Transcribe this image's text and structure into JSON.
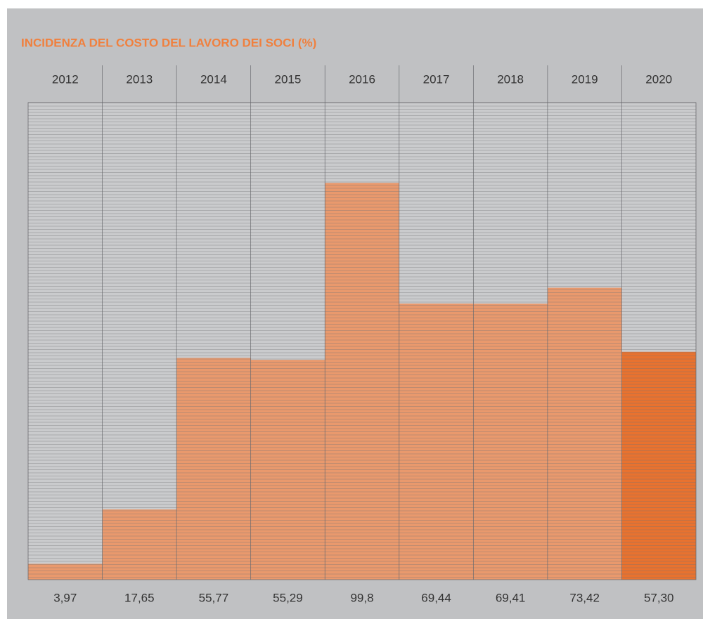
{
  "chart_data": {
    "type": "bar",
    "title": "INCIDENZA DEL COSTO DEL LAVORO DEI SOCI (%)",
    "categories": [
      "2012",
      "2013",
      "2014",
      "2015",
      "2016",
      "2017",
      "2018",
      "2019",
      "2020"
    ],
    "values": [
      3.97,
      17.65,
      55.77,
      55.29,
      99.8,
      69.44,
      69.41,
      73.42,
      57.3
    ],
    "value_labels": [
      "3,97",
      "17,65",
      "55,77",
      "55,29",
      "99,8",
      "69,44",
      "69,41",
      "73,42",
      "57,30"
    ],
    "colors": [
      "#e9996d",
      "#e9996d",
      "#e9996d",
      "#e9996d",
      "#e9996d",
      "#e9996d",
      "#e9996d",
      "#e9996d",
      "#e8722f"
    ],
    "ylim": [
      0,
      120
    ]
  }
}
